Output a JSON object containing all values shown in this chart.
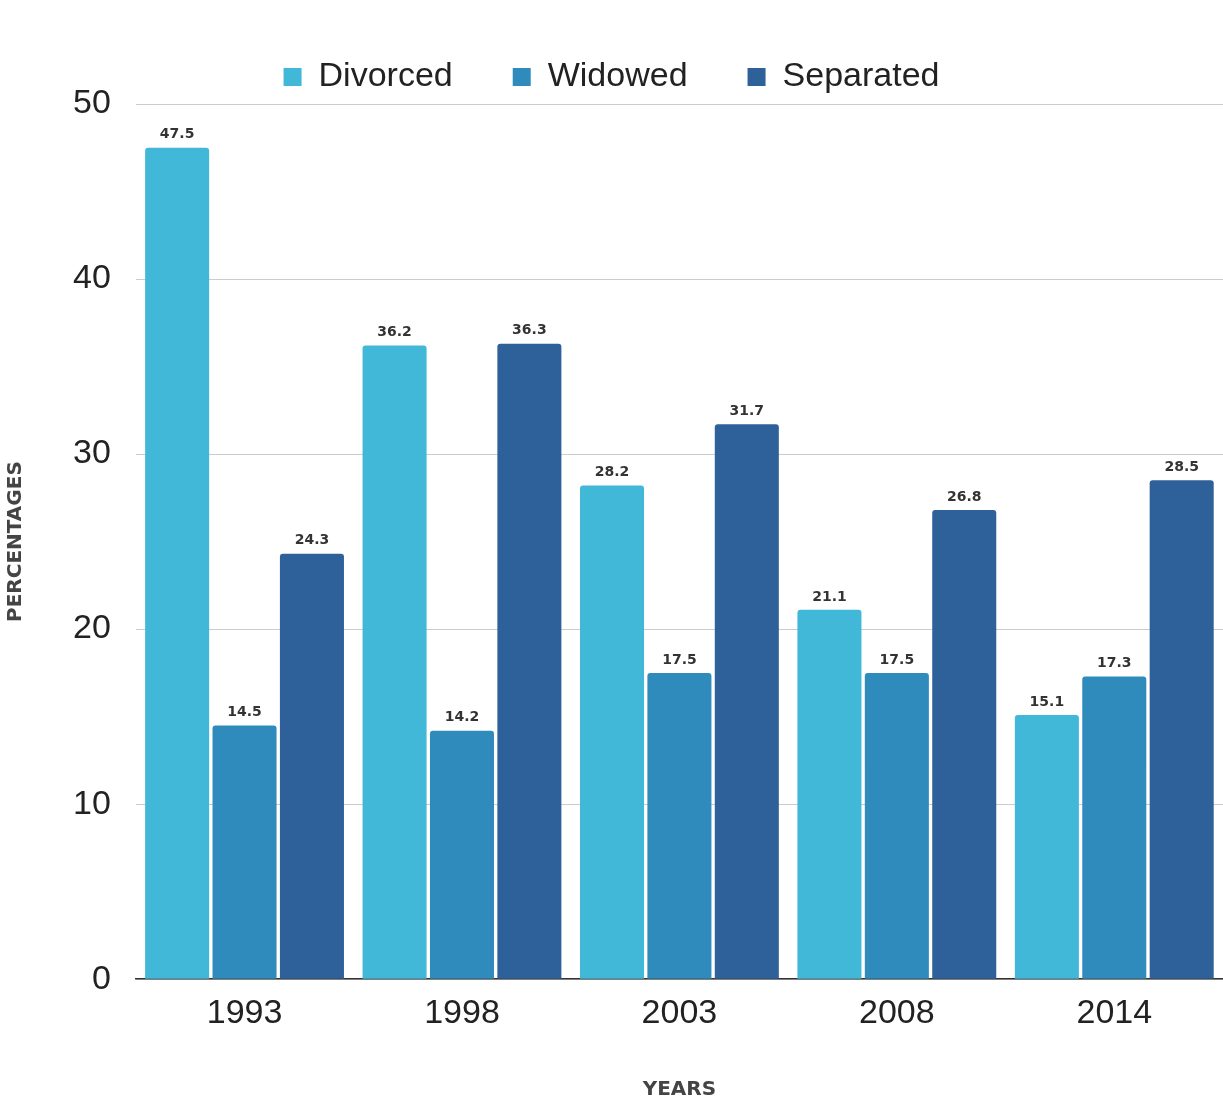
{
  "chart_data": {
    "type": "bar",
    "xlabel": "YEARS",
    "ylabel": "PERCENTAGES",
    "categories": [
      "1993",
      "1998",
      "2003",
      "2008",
      "2014"
    ],
    "series": [
      {
        "name": "Divorced",
        "color": "#42b8d8",
        "values": [
          47.5,
          36.2,
          28.2,
          21.1,
          15.1
        ]
      },
      {
        "name": "Widowed",
        "color": "#2e8bbb",
        "values": [
          14.5,
          14.2,
          17.5,
          17.5,
          17.3
        ]
      },
      {
        "name": "Separated",
        "color": "#2e6099",
        "values": [
          24.3,
          36.3,
          31.7,
          26.8,
          28.5
        ]
      }
    ],
    "ylim": [
      0,
      50
    ],
    "yticks": [
      0,
      10,
      20,
      30,
      40,
      50
    ],
    "grid": "y",
    "legend": "top",
    "data_labels": true
  }
}
